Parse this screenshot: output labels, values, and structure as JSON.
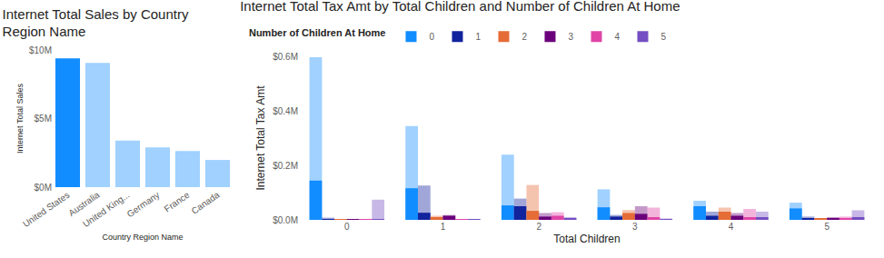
{
  "chart_data": [
    {
      "type": "bar",
      "title": "Internet Total Sales by Country Region Name",
      "x_label": "Country Region Name",
      "y_label": "Internet Total Sales",
      "categories": [
        "United States",
        "Australia",
        "United King...",
        "Germany",
        "France",
        "Canada"
      ],
      "values": [
        9390000,
        9060000,
        3390000,
        2890000,
        2640000,
        1980000
      ],
      "colors": [
        "#118DFF",
        "#A0D1FF",
        "#A0D1FF",
        "#A0D1FF",
        "#A0D1FF",
        "#A0D1FF"
      ],
      "ylim": [
        0,
        10000000
      ],
      "yticks": [
        {
          "value": 0,
          "label": "$0M"
        },
        {
          "value": 5000000,
          "label": "$5M"
        },
        {
          "value": 10000000,
          "label": "$10M"
        }
      ],
      "grid": false
    },
    {
      "type": "bar",
      "title": "Internet Total Tax Amt by Total Children and Number of Children At Home",
      "x_label": "Total Children",
      "y_label": "Internet Total Tax Amt",
      "legend_title": "Number of Children At Home",
      "legend": "top left",
      "categories": [
        "0",
        "1",
        "2",
        "3",
        "4",
        "5"
      ],
      "series": [
        {
          "name": "0",
          "color": "#118DFF",
          "values": [
            597000,
            344000,
            239000,
            112000,
            70000,
            63000
          ],
          "highlighted_values": [
            144000,
            116000,
            53000,
            46000,
            50000,
            42000
          ]
        },
        {
          "name": "1",
          "color": "#12239E",
          "values": [
            8000,
            126000,
            78000,
            18000,
            30000,
            12000
          ],
          "highlighted_values": [
            3000,
            26000,
            50000,
            12000,
            15000,
            6000
          ]
        },
        {
          "name": "2",
          "color": "#E66C37",
          "values": [
            3000,
            15000,
            128000,
            36000,
            45000,
            6000
          ],
          "highlighted_values": [
            2000,
            10000,
            33000,
            25000,
            30000,
            4000
          ]
        },
        {
          "name": "3",
          "color": "#6B007B",
          "values": [
            3000,
            18000,
            25000,
            50000,
            25000,
            10000
          ],
          "highlighted_values": [
            2000,
            15000,
            12000,
            22000,
            15000,
            5000
          ]
        },
        {
          "name": "4",
          "color": "#E044A7",
          "values": [
            3000,
            3000,
            28000,
            45000,
            40000,
            12000
          ],
          "highlighted_values": [
            1000,
            1000,
            15000,
            10000,
            10000,
            4000
          ]
        },
        {
          "name": "5",
          "color": "#744EC2",
          "values": [
            74000,
            2000,
            10000,
            5000,
            30000,
            35000
          ],
          "highlighted_values": [
            2000,
            1000,
            5000,
            3000,
            10000,
            10000
          ]
        }
      ],
      "ylim": [
        0,
        600000
      ],
      "yticks": [
        {
          "value": 0,
          "label": "$0.0M"
        },
        {
          "value": 200000,
          "label": "$0.2M"
        },
        {
          "value": 400000,
          "label": "$0.4M"
        },
        {
          "value": 600000,
          "label": "$0.6M"
        }
      ],
      "grid": false
    }
  ]
}
